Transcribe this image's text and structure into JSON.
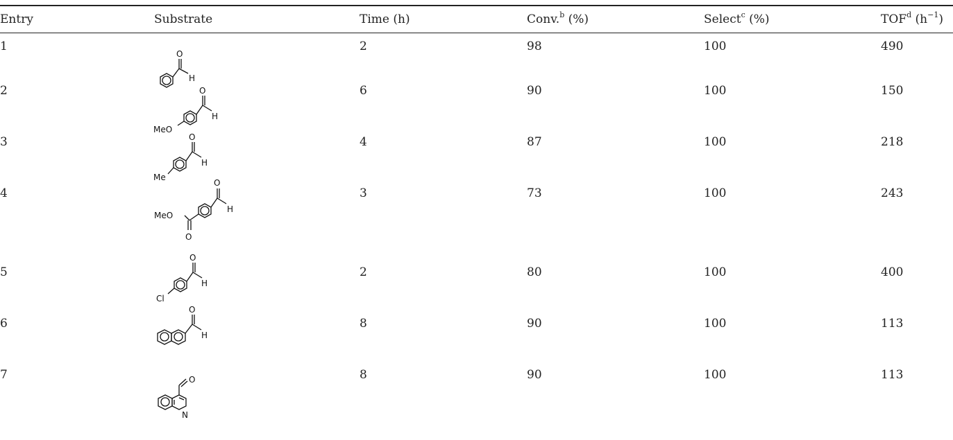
{
  "headers": {
    "entry": "Entry",
    "substrate": "Substrate",
    "time": "Time (h)",
    "conv": "Conv.",
    "conv_sup": "b",
    "conv_unit": " (%)",
    "select": "Select",
    "select_sup": "c",
    "select_unit": " (%)",
    "tof": "TOF",
    "tof_sup": "d",
    "tof_unit_pre": " (h",
    "tof_unit_sup": "−1",
    "tof_unit_post": ")"
  },
  "rows": [
    {
      "entry": "1",
      "time": "2",
      "conv": "98",
      "select": "100",
      "tof": "490"
    },
    {
      "entry": "2",
      "time": "6",
      "conv": "90",
      "select": "100",
      "tof": "150"
    },
    {
      "entry": "3",
      "time": "4",
      "conv": "87",
      "select": "100",
      "tof": "218"
    },
    {
      "entry": "4",
      "time": "3",
      "conv": "73",
      "select": "100",
      "tof": "243"
    },
    {
      "entry": "5",
      "time": "2",
      "conv": "80",
      "select": "100",
      "tof": "400"
    },
    {
      "entry": "6",
      "time": "8",
      "conv": "90",
      "select": "100",
      "tof": "113"
    },
    {
      "entry": "7",
      "time": "8",
      "conv": "90",
      "select": "100",
      "tof": "113"
    }
  ],
  "structure_labels": {
    "O": "O",
    "H": "H",
    "N": "N",
    "MeO": "MeO",
    "Me": "Me",
    "Cl": "Cl"
  }
}
